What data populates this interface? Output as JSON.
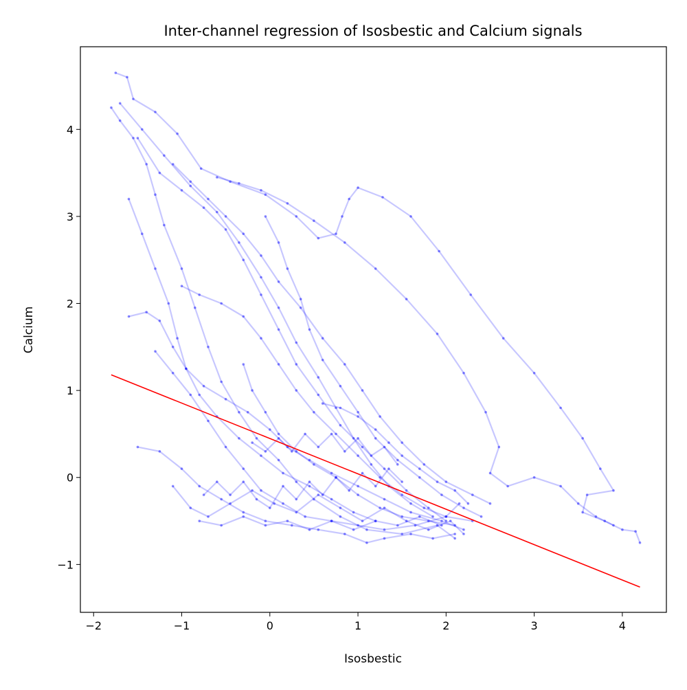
{
  "chart_data": {
    "type": "scatter",
    "title": "Inter-channel regression of Isosbestic and Calcium signals",
    "xlabel": "Isosbestic",
    "ylabel": "Calcium",
    "xlim": [
      -2.15,
      4.5
    ],
    "ylim": [
      -1.55,
      4.95
    ],
    "xticks": [
      -2,
      -1,
      0,
      1,
      2,
      3,
      4
    ],
    "yticks": [
      -1,
      0,
      1,
      2,
      3,
      4
    ],
    "grid": false,
    "legend": "none",
    "colors": {
      "scatter": "#0000ff",
      "regression": "#ff0000"
    },
    "regression_line": {
      "x": [
        -1.8,
        4.2
      ],
      "y": [
        1.18,
        -1.26
      ]
    },
    "series": [
      {
        "values": [
          [
            -1.75,
            4.65
          ],
          [
            -1.62,
            4.6
          ],
          [
            -1.55,
            4.35
          ],
          [
            -1.3,
            4.2
          ],
          [
            -1.05,
            3.95
          ],
          [
            -0.78,
            3.55
          ],
          [
            -0.45,
            3.4
          ],
          [
            -0.05,
            3.25
          ],
          [
            0.3,
            3.0
          ],
          [
            0.55,
            2.75
          ],
          [
            0.75,
            2.8
          ],
          [
            0.82,
            3.0
          ],
          [
            0.9,
            3.2
          ],
          [
            1.0,
            3.33
          ],
          [
            1.28,
            3.22
          ],
          [
            1.6,
            3.0
          ],
          [
            1.92,
            2.6
          ],
          [
            2.28,
            2.1
          ],
          [
            2.65,
            1.6
          ],
          [
            3.0,
            1.2
          ],
          [
            3.3,
            0.8
          ],
          [
            3.55,
            0.45
          ],
          [
            3.75,
            0.1
          ],
          [
            3.9,
            -0.15
          ],
          [
            3.6,
            -0.2
          ],
          [
            3.55,
            -0.4
          ],
          [
            3.8,
            -0.5
          ],
          [
            4.0,
            -0.6
          ],
          [
            4.15,
            -0.62
          ],
          [
            4.2,
            -0.75
          ]
        ]
      },
      {
        "values": [
          [
            -1.8,
            4.25
          ],
          [
            -1.7,
            4.1
          ],
          [
            -1.55,
            3.9
          ],
          [
            -1.4,
            3.6
          ],
          [
            -1.3,
            3.25
          ],
          [
            -1.2,
            2.9
          ],
          [
            -1.0,
            2.4
          ],
          [
            -0.85,
            1.95
          ],
          [
            -0.7,
            1.5
          ],
          [
            -0.55,
            1.1
          ],
          [
            -0.35,
            0.75
          ],
          [
            -0.15,
            0.45
          ],
          [
            0.1,
            0.2
          ],
          [
            0.3,
            -0.05
          ],
          [
            0.5,
            -0.25
          ],
          [
            0.8,
            -0.45
          ],
          [
            1.1,
            -0.6
          ],
          [
            1.5,
            -0.65
          ],
          [
            1.9,
            -0.55
          ],
          [
            2.1,
            -0.7
          ]
        ]
      },
      {
        "values": [
          [
            -1.5,
            3.9
          ],
          [
            -1.25,
            3.5
          ],
          [
            -1.0,
            3.3
          ],
          [
            -0.75,
            3.1
          ],
          [
            -0.5,
            2.85
          ],
          [
            -0.3,
            2.5
          ],
          [
            -0.1,
            2.1
          ],
          [
            0.1,
            1.7
          ],
          [
            0.3,
            1.3
          ],
          [
            0.55,
            0.95
          ],
          [
            0.8,
            0.6
          ],
          [
            1.05,
            0.35
          ],
          [
            1.3,
            0.1
          ],
          [
            1.55,
            -0.15
          ],
          [
            1.8,
            -0.35
          ],
          [
            2.0,
            -0.5
          ]
        ]
      },
      {
        "values": [
          [
            -1.6,
            3.2
          ],
          [
            -1.45,
            2.8
          ],
          [
            -1.3,
            2.4
          ],
          [
            -1.15,
            2.0
          ],
          [
            -1.05,
            1.6
          ],
          [
            -0.95,
            1.25
          ],
          [
            -0.8,
            0.95
          ],
          [
            -0.6,
            0.7
          ],
          [
            -0.35,
            0.45
          ],
          [
            -0.1,
            0.25
          ],
          [
            0.15,
            0.05
          ],
          [
            0.45,
            -0.1
          ],
          [
            0.7,
            -0.25
          ],
          [
            0.95,
            -0.4
          ],
          [
            1.2,
            -0.5
          ]
        ]
      },
      {
        "values": [
          [
            -1.1,
            3.6
          ],
          [
            -0.9,
            3.4
          ],
          [
            -0.7,
            3.2
          ],
          [
            -0.5,
            3.0
          ],
          [
            -0.3,
            2.8
          ],
          [
            -0.1,
            2.55
          ],
          [
            0.1,
            2.25
          ],
          [
            0.35,
            1.95
          ],
          [
            0.6,
            1.6
          ],
          [
            0.85,
            1.3
          ],
          [
            1.05,
            1.0
          ],
          [
            1.25,
            0.7
          ],
          [
            1.5,
            0.4
          ],
          [
            1.75,
            0.15
          ],
          [
            2.0,
            -0.05
          ],
          [
            2.3,
            -0.2
          ],
          [
            2.5,
            -0.3
          ]
        ]
      },
      {
        "values": [
          [
            -0.6,
            3.45
          ],
          [
            -0.35,
            3.38
          ],
          [
            -0.1,
            3.3
          ],
          [
            0.2,
            3.15
          ],
          [
            0.5,
            2.95
          ],
          [
            0.85,
            2.7
          ],
          [
            1.2,
            2.4
          ],
          [
            1.55,
            2.05
          ],
          [
            1.9,
            1.65
          ],
          [
            2.2,
            1.2
          ],
          [
            2.45,
            0.75
          ],
          [
            2.6,
            0.35
          ],
          [
            2.5,
            0.05
          ],
          [
            2.7,
            -0.1
          ],
          [
            3.0,
            0.0
          ],
          [
            3.3,
            -0.1
          ],
          [
            3.5,
            -0.3
          ],
          [
            3.7,
            -0.45
          ],
          [
            3.9,
            -0.55
          ]
        ]
      },
      {
        "values": [
          [
            -1.7,
            4.3
          ],
          [
            -1.45,
            4.0
          ],
          [
            -1.2,
            3.7
          ],
          [
            -0.9,
            3.35
          ],
          [
            -0.6,
            3.05
          ],
          [
            -0.35,
            2.7
          ],
          [
            -0.1,
            2.3
          ],
          [
            0.1,
            1.95
          ],
          [
            0.3,
            1.55
          ],
          [
            0.55,
            1.15
          ],
          [
            0.75,
            0.8
          ],
          [
            0.95,
            0.45
          ],
          [
            1.15,
            0.15
          ],
          [
            1.35,
            -0.1
          ],
          [
            1.6,
            -0.3
          ],
          [
            1.85,
            -0.45
          ]
        ]
      },
      {
        "values": [
          [
            -1.6,
            1.85
          ],
          [
            -1.4,
            1.9
          ],
          [
            -1.25,
            1.8
          ],
          [
            -1.1,
            1.5
          ],
          [
            -0.95,
            1.25
          ],
          [
            -0.75,
            1.05
          ],
          [
            -0.5,
            0.9
          ],
          [
            -0.25,
            0.75
          ],
          [
            0.0,
            0.55
          ],
          [
            0.2,
            0.35
          ],
          [
            0.45,
            0.2
          ],
          [
            0.7,
            0.05
          ],
          [
            1.0,
            -0.1
          ],
          [
            1.3,
            -0.25
          ],
          [
            1.6,
            -0.4
          ],
          [
            1.95,
            -0.5
          ],
          [
            2.2,
            -0.6
          ]
        ]
      },
      {
        "values": [
          [
            -0.05,
            3.0
          ],
          [
            0.1,
            2.7
          ],
          [
            0.2,
            2.4
          ],
          [
            0.35,
            2.05
          ],
          [
            0.45,
            1.7
          ],
          [
            0.6,
            1.35
          ],
          [
            0.8,
            1.05
          ],
          [
            1.0,
            0.75
          ],
          [
            1.2,
            0.45
          ],
          [
            1.45,
            0.2
          ],
          [
            1.7,
            0.0
          ],
          [
            1.95,
            -0.2
          ],
          [
            2.2,
            -0.35
          ],
          [
            2.4,
            -0.45
          ]
        ]
      },
      {
        "values": [
          [
            -1.5,
            0.35
          ],
          [
            -1.25,
            0.3
          ],
          [
            -1.0,
            0.1
          ],
          [
            -0.8,
            -0.1
          ],
          [
            -0.55,
            -0.25
          ],
          [
            -0.3,
            -0.4
          ],
          [
            -0.05,
            -0.5
          ],
          [
            0.25,
            -0.55
          ],
          [
            0.55,
            -0.6
          ],
          [
            0.85,
            -0.65
          ],
          [
            1.1,
            -0.75
          ],
          [
            1.3,
            -0.7
          ],
          [
            1.6,
            -0.65
          ],
          [
            1.85,
            -0.7
          ],
          [
            2.1,
            -0.65
          ]
        ]
      },
      {
        "values": [
          [
            -1.0,
            2.2
          ],
          [
            -0.8,
            2.1
          ],
          [
            -0.55,
            2.0
          ],
          [
            -0.3,
            1.85
          ],
          [
            -0.1,
            1.6
          ],
          [
            0.1,
            1.3
          ],
          [
            0.3,
            1.0
          ],
          [
            0.5,
            0.75
          ],
          [
            0.75,
            0.5
          ],
          [
            1.0,
            0.25
          ],
          [
            1.25,
            0.0
          ],
          [
            1.5,
            -0.2
          ],
          [
            1.75,
            -0.35
          ],
          [
            2.0,
            -0.45
          ],
          [
            2.3,
            -0.5
          ]
        ]
      },
      {
        "values": [
          [
            -1.3,
            1.45
          ],
          [
            -1.1,
            1.2
          ],
          [
            -0.9,
            0.95
          ],
          [
            -0.7,
            0.65
          ],
          [
            -0.5,
            0.35
          ],
          [
            -0.3,
            0.1
          ],
          [
            -0.1,
            -0.15
          ],
          [
            0.15,
            -0.3
          ],
          [
            0.4,
            -0.45
          ],
          [
            0.7,
            -0.5
          ],
          [
            1.0,
            -0.55
          ],
          [
            1.3,
            -0.6
          ],
          [
            1.65,
            -0.55
          ],
          [
            2.0,
            -0.45
          ],
          [
            2.15,
            -0.3
          ]
        ]
      },
      {
        "values": [
          [
            -1.1,
            -0.1
          ],
          [
            -0.9,
            -0.35
          ],
          [
            -0.7,
            -0.45
          ],
          [
            -0.45,
            -0.3
          ],
          [
            -0.2,
            -0.15
          ],
          [
            0.05,
            -0.3
          ],
          [
            0.3,
            -0.4
          ],
          [
            0.55,
            -0.2
          ],
          [
            0.8,
            -0.35
          ],
          [
            1.05,
            -0.5
          ],
          [
            1.3,
            -0.35
          ],
          [
            1.55,
            -0.5
          ],
          [
            1.8,
            -0.6
          ],
          [
            2.05,
            -0.5
          ],
          [
            2.2,
            -0.65
          ]
        ]
      },
      {
        "values": [
          [
            -0.3,
            1.3
          ],
          [
            -0.2,
            1.0
          ],
          [
            -0.05,
            0.75
          ],
          [
            0.1,
            0.5
          ],
          [
            0.3,
            0.3
          ],
          [
            0.5,
            0.15
          ],
          [
            0.75,
            0.0
          ],
          [
            1.0,
            -0.2
          ],
          [
            1.25,
            -0.35
          ],
          [
            1.5,
            -0.45
          ],
          [
            1.8,
            -0.5
          ],
          [
            2.1,
            -0.55
          ]
        ]
      },
      {
        "values": [
          [
            0.6,
            0.85
          ],
          [
            0.8,
            0.8
          ],
          [
            1.0,
            0.7
          ],
          [
            1.2,
            0.55
          ],
          [
            1.35,
            0.4
          ],
          [
            1.5,
            0.25
          ],
          [
            1.7,
            0.1
          ],
          [
            1.9,
            -0.05
          ],
          [
            2.1,
            -0.15
          ],
          [
            2.25,
            -0.3
          ]
        ]
      },
      {
        "values": [
          [
            -0.75,
            -0.2
          ],
          [
            -0.6,
            -0.05
          ],
          [
            -0.45,
            -0.2
          ],
          [
            -0.3,
            -0.05
          ],
          [
            -0.15,
            -0.25
          ],
          [
            0.0,
            -0.35
          ],
          [
            0.15,
            -0.1
          ],
          [
            0.3,
            -0.25
          ],
          [
            0.45,
            -0.05
          ],
          [
            0.6,
            -0.2
          ],
          [
            0.75,
            0.0
          ],
          [
            0.9,
            -0.15
          ],
          [
            1.05,
            0.05
          ],
          [
            1.2,
            -0.1
          ],
          [
            1.35,
            0.1
          ],
          [
            1.5,
            -0.05
          ]
        ]
      },
      {
        "values": [
          [
            -0.2,
            0.4
          ],
          [
            -0.05,
            0.3
          ],
          [
            0.1,
            0.45
          ],
          [
            0.25,
            0.3
          ],
          [
            0.4,
            0.5
          ],
          [
            0.55,
            0.35
          ],
          [
            0.7,
            0.5
          ],
          [
            0.85,
            0.3
          ],
          [
            1.0,
            0.45
          ],
          [
            1.15,
            0.25
          ],
          [
            1.3,
            0.35
          ],
          [
            1.45,
            0.15
          ]
        ]
      },
      {
        "values": [
          [
            -0.8,
            -0.5
          ],
          [
            -0.55,
            -0.55
          ],
          [
            -0.3,
            -0.45
          ],
          [
            -0.05,
            -0.55
          ],
          [
            0.2,
            -0.5
          ],
          [
            0.45,
            -0.6
          ],
          [
            0.7,
            -0.5
          ],
          [
            0.95,
            -0.6
          ],
          [
            1.2,
            -0.5
          ],
          [
            1.45,
            -0.55
          ],
          [
            1.7,
            -0.45
          ],
          [
            1.95,
            -0.55
          ]
        ]
      }
    ]
  }
}
